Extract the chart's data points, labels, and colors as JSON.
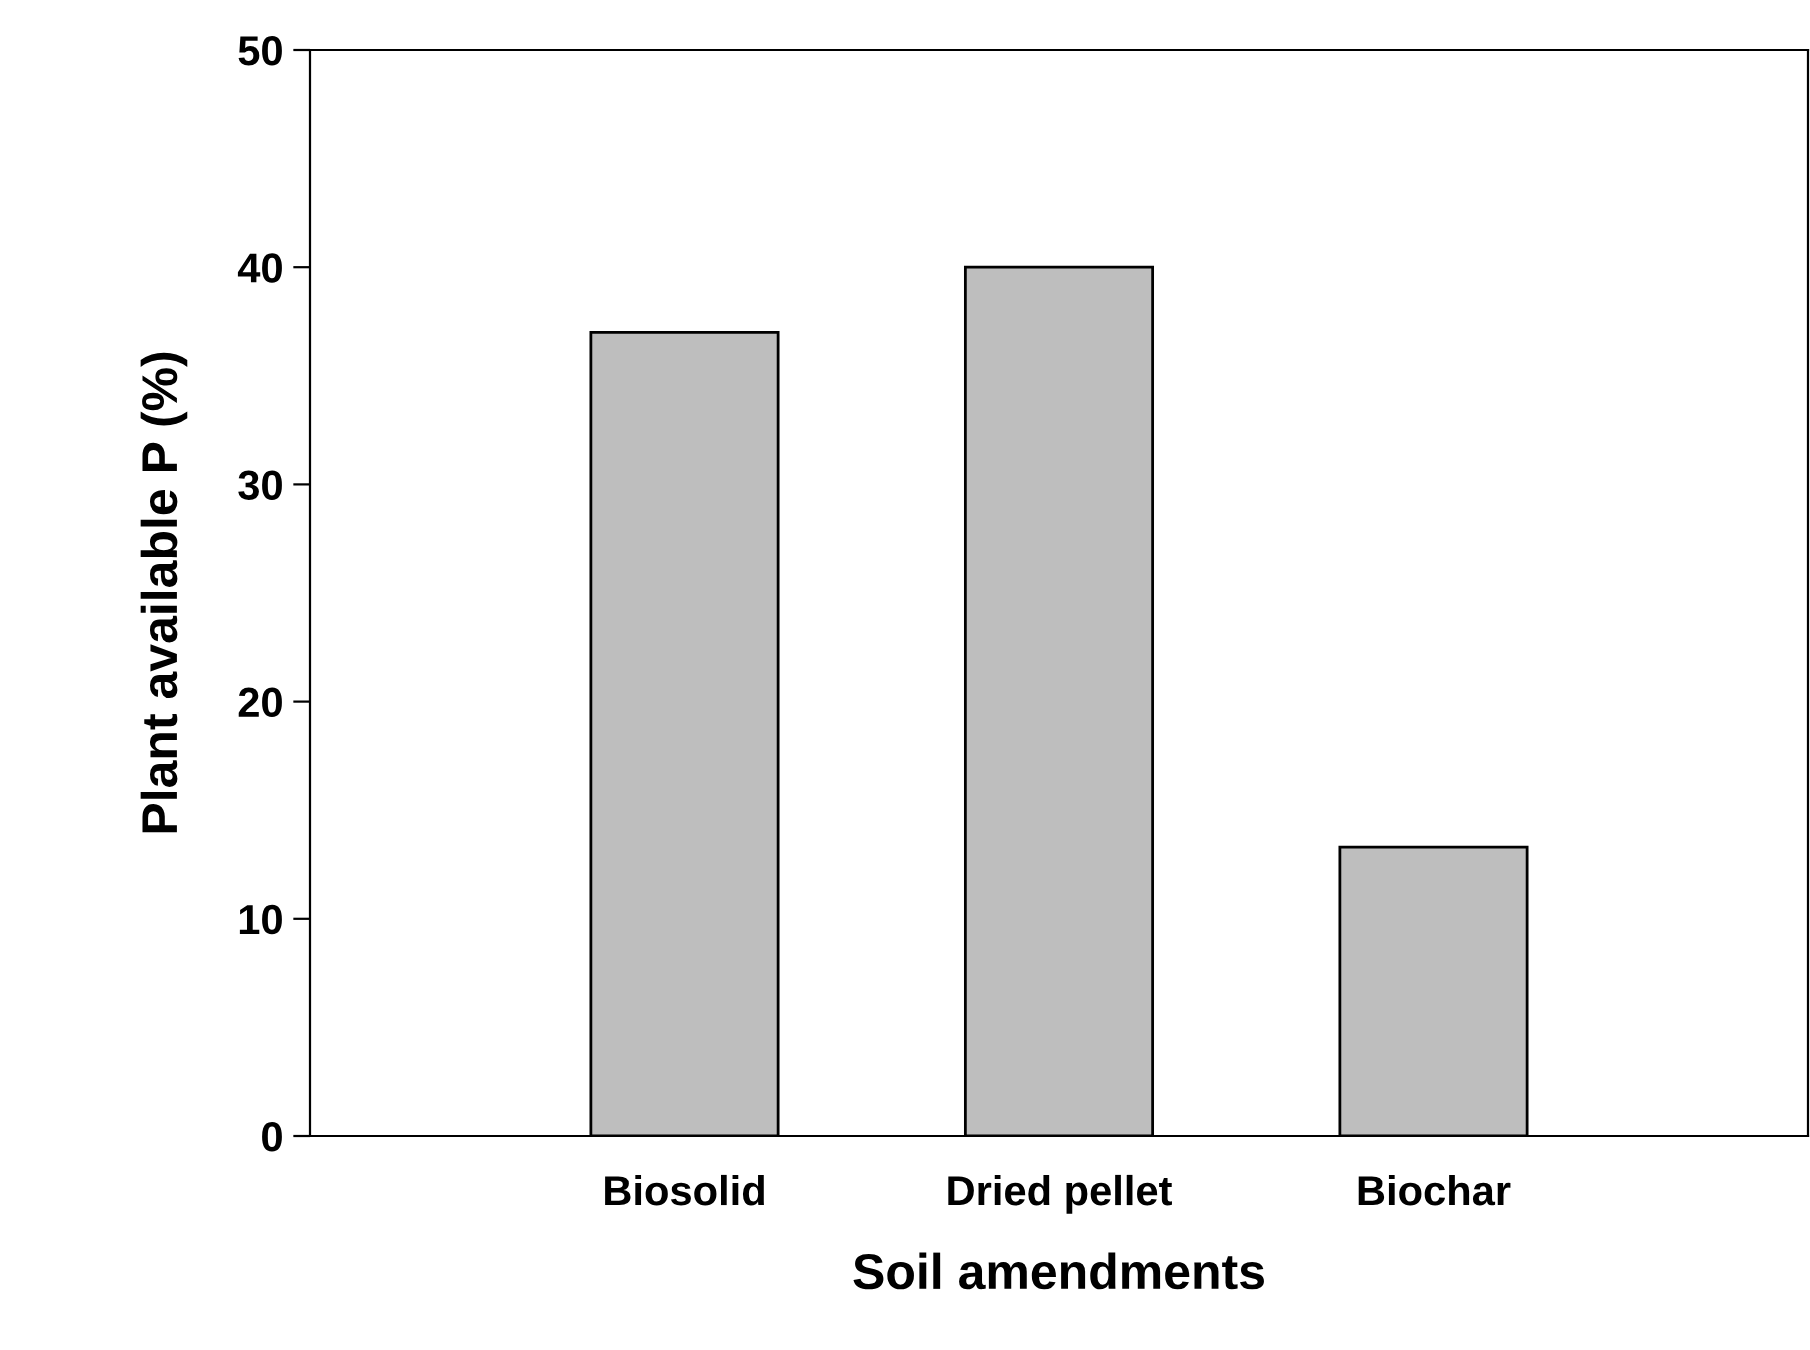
{
  "chart_data": {
    "type": "bar",
    "xlabel": "Soil amendments",
    "ylabel": "Plant available P (%)",
    "categories": [
      null,
      "Biosolid",
      "Dried pellet",
      "Biochar",
      null
    ],
    "values": [
      null,
      37,
      40,
      13.3,
      null
    ],
    "color": "#bebebe",
    "ylim": [
      0,
      50
    ],
    "yticks": [
      0,
      10,
      20,
      30,
      40,
      50
    ],
    "grid": false,
    "legend": false
  }
}
